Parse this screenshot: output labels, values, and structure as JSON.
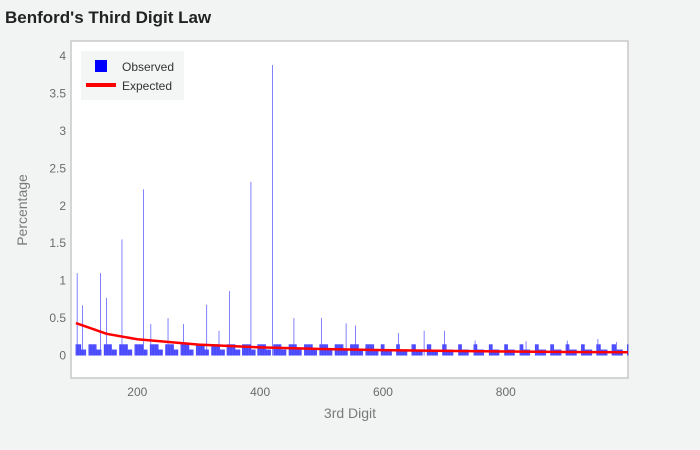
{
  "chart_data": {
    "type": "bar",
    "title": "Benford's Third Digit Law",
    "xlabel": "3rd Digit",
    "ylabel": "Percentage",
    "xlim": [
      92,
      999
    ],
    "ylim": [
      -0.3,
      4.2
    ],
    "x_ticks": [
      {
        "value": 200,
        "label": "200"
      },
      {
        "value": 400,
        "label": "400"
      },
      {
        "value": 600,
        "label": "600"
      },
      {
        "value": 800,
        "label": "800"
      }
    ],
    "y_ticks": [
      {
        "value": 0,
        "label": "0"
      },
      {
        "value": 0.5,
        "label": "0.5"
      },
      {
        "value": 1,
        "label": "1"
      },
      {
        "value": 1.5,
        "label": "1.5"
      },
      {
        "value": 2,
        "label": "2"
      },
      {
        "value": 2.5,
        "label": "2.5"
      },
      {
        "value": 3,
        "label": "3"
      },
      {
        "value": 3.5,
        "label": "3.5"
      },
      {
        "value": 4,
        "label": "4"
      }
    ],
    "grid": false,
    "legend": {
      "position": "top-left"
    },
    "series": [
      {
        "name": "Observed",
        "kind": "bar",
        "color": "#0000ff",
        "x_range": [
          100,
          999
        ],
        "baseline_values": [
          0.15,
          0.08
        ],
        "peaks": [
          {
            "x": 102,
            "y": 1.1
          },
          {
            "x": 111,
            "y": 0.67
          },
          {
            "x": 140,
            "y": 1.1
          },
          {
            "x": 150,
            "y": 0.77
          },
          {
            "x": 175,
            "y": 1.55
          },
          {
            "x": 210,
            "y": 2.22
          },
          {
            "x": 222,
            "y": 0.42
          },
          {
            "x": 250,
            "y": 0.5
          },
          {
            "x": 275,
            "y": 0.42
          },
          {
            "x": 313,
            "y": 0.68
          },
          {
            "x": 333,
            "y": 0.33
          },
          {
            "x": 350,
            "y": 0.86
          },
          {
            "x": 385,
            "y": 2.32
          },
          {
            "x": 420,
            "y": 3.88
          },
          {
            "x": 455,
            "y": 0.5
          },
          {
            "x": 500,
            "y": 0.5
          },
          {
            "x": 540,
            "y": 0.43
          },
          {
            "x": 555,
            "y": 0.4
          },
          {
            "x": 625,
            "y": 0.3
          },
          {
            "x": 667,
            "y": 0.33
          },
          {
            "x": 700,
            "y": 0.33
          },
          {
            "x": 750,
            "y": 0.2
          },
          {
            "x": 833,
            "y": 0.19
          },
          {
            "x": 900,
            "y": 0.2
          },
          {
            "x": 950,
            "y": 0.22
          },
          {
            "x": 980,
            "y": 0.18
          }
        ]
      },
      {
        "name": "Expected",
        "kind": "line",
        "color": "#ff0000",
        "x": [
          100,
          150,
          200,
          300,
          400,
          500,
          600,
          700,
          800,
          900,
          999
        ],
        "y": [
          0.434,
          0.29,
          0.217,
          0.145,
          0.109,
          0.087,
          0.072,
          0.062,
          0.054,
          0.048,
          0.043
        ]
      }
    ]
  }
}
